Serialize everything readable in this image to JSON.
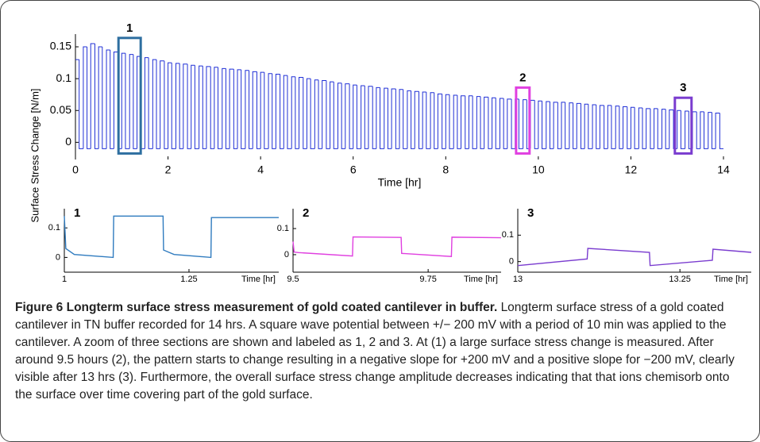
{
  "chart_data": [
    {
      "type": "line",
      "step": true,
      "ylabel": "Surface Stress Change [N/m]",
      "xlabel": "Time [hr]",
      "xlim": [
        0,
        14
      ],
      "xticks": [
        0,
        2,
        4,
        6,
        8,
        10,
        12,
        14
      ],
      "ylim": [
        -0.022,
        0.17
      ],
      "yticks": [
        0,
        0.05,
        0.1,
        0.15
      ],
      "color": "#1f2fd6",
      "x": [
        0,
        0.08,
        0.17,
        0.25,
        0.33,
        0.42,
        0.5,
        0.58,
        0.67,
        0.75,
        0.83,
        0.92,
        1,
        1.08,
        1.17,
        1.25,
        1.33,
        1.42,
        1.5,
        1.58,
        1.67,
        1.75,
        1.83,
        1.92,
        2,
        2.08,
        2.17,
        2.25,
        2.33,
        2.42,
        2.5,
        2.58,
        2.67,
        2.75,
        2.83,
        2.92,
        3,
        3.08,
        3.17,
        3.25,
        3.33,
        3.42,
        3.5,
        3.58,
        3.67,
        3.75,
        3.83,
        3.92,
        4,
        4.08,
        4.17,
        4.25,
        4.33,
        4.42,
        4.5,
        4.58,
        4.67,
        4.75,
        4.83,
        4.92,
        5,
        5.08,
        5.17,
        5.25,
        5.33,
        5.42,
        5.5,
        5.58,
        5.67,
        5.75,
        5.83,
        5.92,
        6,
        6.08,
        6.17,
        6.25,
        6.33,
        6.42,
        6.5,
        6.58,
        6.67,
        6.75,
        6.83,
        6.92,
        7,
        7.08,
        7.17,
        7.25,
        7.33,
        7.42,
        7.5,
        7.58,
        7.67,
        7.75,
        7.83,
        7.92,
        8,
        8.08,
        8.17,
        8.25,
        8.33,
        8.42,
        8.5,
        8.58,
        8.67,
        8.75,
        8.83,
        8.92,
        9,
        9.08,
        9.17,
        9.25,
        9.33,
        9.42,
        9.5,
        9.58,
        9.67,
        9.75,
        9.83,
        9.92,
        10,
        10.08,
        10.17,
        10.25,
        10.33,
        10.42,
        10.5,
        10.58,
        10.67,
        10.75,
        10.83,
        10.92,
        11,
        11.08,
        11.17,
        11.25,
        11.33,
        11.42,
        11.5,
        11.58,
        11.67,
        11.75,
        11.83,
        11.92,
        12,
        12.08,
        12.17,
        12.25,
        12.33,
        12.42,
        12.5,
        12.58,
        12.67,
        12.75,
        12.83,
        12.92,
        13,
        13.08,
        13.17,
        13.25,
        13.33,
        13.42,
        13.5,
        13.58,
        13.67,
        13.75,
        13.83,
        13.92
      ],
      "values": [
        0.13,
        -0.01,
        0.15,
        -0.01,
        0.155,
        -0.01,
        0.15,
        -0.01,
        0.145,
        -0.01,
        0.142,
        -0.01,
        0.14,
        -0.01,
        0.138,
        -0.01,
        0.135,
        -0.01,
        0.133,
        -0.01,
        0.13,
        -0.01,
        0.128,
        -0.01,
        0.125,
        -0.01,
        0.124,
        -0.01,
        0.123,
        -0.01,
        0.121,
        -0.01,
        0.12,
        -0.01,
        0.119,
        -0.01,
        0.118,
        -0.01,
        0.116,
        -0.01,
        0.115,
        -0.01,
        0.114,
        -0.01,
        0.113,
        -0.01,
        0.111,
        -0.01,
        0.11,
        -0.01,
        0.108,
        -0.01,
        0.107,
        -0.01,
        0.105,
        -0.01,
        0.103,
        -0.01,
        0.102,
        -0.01,
        0.1,
        -0.01,
        0.098,
        -0.01,
        0.097,
        -0.01,
        0.095,
        -0.01,
        0.093,
        -0.01,
        0.092,
        -0.01,
        0.09,
        -0.01,
        0.089,
        -0.01,
        0.088,
        -0.01,
        0.086,
        -0.01,
        0.085,
        -0.01,
        0.084,
        -0.01,
        0.083,
        -0.01,
        0.081,
        -0.01,
        0.08,
        -0.01,
        0.079,
        -0.01,
        0.078,
        -0.01,
        0.076,
        -0.01,
        0.075,
        -0.01,
        0.074,
        -0.01,
        0.073,
        -0.01,
        0.073,
        -0.01,
        0.072,
        -0.01,
        0.071,
        -0.01,
        0.07,
        -0.01,
        0.069,
        -0.01,
        0.068,
        -0.01,
        0.068,
        -0.01,
        0.067,
        -0.01,
        0.066,
        -0.01,
        0.065,
        -0.01,
        0.064,
        -0.01,
        0.063,
        -0.01,
        0.063,
        -0.01,
        0.062,
        -0.01,
        0.061,
        -0.01,
        0.06,
        -0.01,
        0.059,
        -0.01,
        0.058,
        -0.01,
        0.058,
        -0.01,
        0.057,
        -0.01,
        0.056,
        -0.01,
        0.055,
        -0.01,
        0.054,
        -0.01,
        0.053,
        -0.01,
        0.053,
        -0.01,
        0.052,
        -0.01,
        0.051,
        -0.01,
        0.05,
        -0.01,
        0.049,
        -0.01,
        0.048,
        -0.01,
        0.048,
        -0.01,
        0.047,
        -0.01,
        0.046,
        -0.01
      ],
      "annotations": [
        {
          "label": "1",
          "x": [
            0.93,
            1.41
          ],
          "y": [
            -0.0175,
            0.164
          ],
          "color": "#2e6fa0"
        },
        {
          "label": "2",
          "x": [
            9.52,
            9.81
          ],
          "y": [
            -0.0175,
            0.086
          ],
          "color": "#e040e0"
        },
        {
          "label": "3",
          "x": [
            12.95,
            13.31
          ],
          "y": [
            -0.0175,
            0.07
          ],
          "color": "#7a3ccf"
        }
      ]
    },
    {
      "type": "line",
      "title": "1",
      "xlabel": "Time [hr]",
      "xlim": [
        1,
        1.43
      ],
      "xticks": [
        1,
        1.25
      ],
      "ylim": [
        -0.05,
        0.165
      ],
      "yticks": [
        0,
        0.1
      ],
      "color": "#2f7bbf",
      "x": [
        1,
        1.003,
        1.02,
        1.098,
        1.099,
        1.198,
        1.199,
        1.22,
        1.294,
        1.295,
        1.43
      ],
      "values": [
        0.14,
        0.03,
        0.01,
        0,
        0.14,
        0.14,
        0.025,
        0.01,
        0,
        0.135,
        0.135
      ]
    },
    {
      "type": "line",
      "title": "2",
      "xlabel": "Time [hr]",
      "xlim": [
        9.5,
        9.885
      ],
      "xticks": [
        9.5,
        9.75
      ],
      "ylim": [
        -0.067,
        0.176
      ],
      "yticks": [
        0,
        0.1
      ],
      "color": "#e040e0",
      "x": [
        9.5,
        9.502,
        9.51,
        9.61,
        9.611,
        9.7,
        9.701,
        9.793,
        9.794,
        9.885
      ],
      "values": [
        0.05,
        0.01,
        0.008,
        -0.005,
        0.068,
        0.066,
        0.005,
        -0.007,
        0.067,
        0.065
      ]
    },
    {
      "type": "line",
      "title": "3",
      "xlabel": "Time [hr]",
      "xlim": [
        13,
        13.36
      ],
      "xticks": [
        13,
        13.25
      ],
      "ylim": [
        -0.04,
        0.2
      ],
      "yticks": [
        0,
        0.1
      ],
      "color": "#7a3ccf",
      "x": [
        13,
        13.107,
        13.108,
        13.203,
        13.204,
        13.3,
        13.301,
        13.36
      ],
      "values": [
        -0.015,
        0.01,
        0.05,
        0.035,
        -0.015,
        0.005,
        0.047,
        0.035
      ]
    }
  ],
  "caption": {
    "title": "Figure 6 Longterm surface stress measurement of gold coated cantilever in buffer.",
    "text": "Longterm surface stress of a gold coated cantilever in TN buffer recorded for 14 hrs. A square wave potential between +/− 200 mV with a period of 10 min was applied to the cantilever. A zoom of three sections are shown and labeled as 1, 2 and 3. At (1) a large surface stress change is measured. After around 9.5 hours (2), the pattern starts to change resulting in a negative slope for +200 mV and a positive slope for −200 mV, clearly visible after 13 hrs (3). Furthermore, the overall surface stress change amplitude decreases indicating that that ions chemisorb onto the surface over time covering part of the gold surface."
  }
}
